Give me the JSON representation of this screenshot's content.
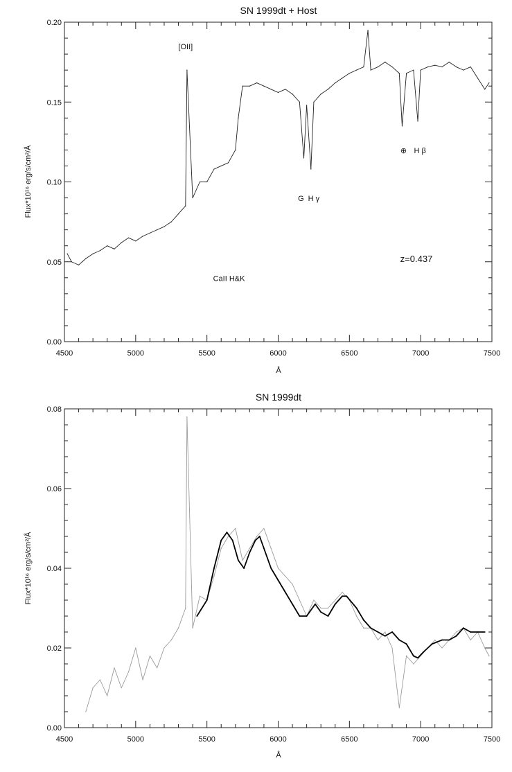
{
  "chart_data": [
    {
      "type": "line",
      "title": "SN 1999dt + Host",
      "xlabel": "Å",
      "ylabel": "Flux*10¹⁶ erg/s/cm²/Å",
      "xlim": [
        4500,
        7500
      ],
      "ylim": [
        0.0,
        0.2
      ],
      "x_ticks": [
        4500,
        5000,
        5500,
        6000,
        6500,
        7000,
        7500
      ],
      "y_ticks": [
        "0.00",
        "0.05",
        "0.10",
        "0.15",
        "0.20"
      ],
      "y_tick_values": [
        0.0,
        0.05,
        0.1,
        0.15,
        0.2
      ],
      "series": [
        {
          "name": "spectrum",
          "color": "#222222",
          "x": [
            4520,
            4550,
            4600,
            4650,
            4700,
            4750,
            4800,
            4850,
            4900,
            4950,
            5000,
            5050,
            5100,
            5150,
            5200,
            5250,
            5300,
            5350,
            5360,
            5400,
            5450,
            5500,
            5550,
            5600,
            5650,
            5700,
            5720,
            5750,
            5800,
            5850,
            5900,
            5950,
            6000,
            6050,
            6100,
            6150,
            6180,
            6200,
            6230,
            6250,
            6300,
            6350,
            6400,
            6450,
            6500,
            6550,
            6600,
            6630,
            6650,
            6700,
            6750,
            6800,
            6850,
            6870,
            6900,
            6950,
            6980,
            7000,
            7050,
            7100,
            7150,
            7200,
            7250,
            7300,
            7350,
            7400,
            7450,
            7480
          ],
          "values": [
            0.055,
            0.05,
            0.048,
            0.052,
            0.055,
            0.057,
            0.06,
            0.058,
            0.062,
            0.065,
            0.063,
            0.066,
            0.068,
            0.07,
            0.072,
            0.075,
            0.08,
            0.085,
            0.17,
            0.09,
            0.1,
            0.1,
            0.108,
            0.11,
            0.112,
            0.12,
            0.14,
            0.16,
            0.16,
            0.162,
            0.16,
            0.158,
            0.156,
            0.158,
            0.155,
            0.15,
            0.115,
            0.148,
            0.108,
            0.15,
            0.155,
            0.158,
            0.162,
            0.165,
            0.168,
            0.17,
            0.172,
            0.195,
            0.17,
            0.172,
            0.175,
            0.172,
            0.168,
            0.135,
            0.168,
            0.17,
            0.138,
            0.17,
            0.172,
            0.173,
            0.172,
            0.175,
            0.172,
            0.17,
            0.172,
            0.165,
            0.158,
            0.162
          ]
        }
      ],
      "annotations": [
        {
          "text": "[OII]",
          "x": 5350,
          "y": 0.183,
          "size": "small"
        },
        {
          "text": "CaII H&K",
          "x": 5655,
          "y": 0.038,
          "size": "small"
        },
        {
          "text": "G",
          "x": 6160,
          "y": 0.088,
          "size": "small"
        },
        {
          "text": "H γ",
          "x": 6250,
          "y": 0.088,
          "size": "small"
        },
        {
          "text": "⊕",
          "x": 6880,
          "y": 0.118,
          "size": "small"
        },
        {
          "text": "H β",
          "x": 6995,
          "y": 0.118,
          "size": "small"
        },
        {
          "text": "z=0.437",
          "x": 6970,
          "y": 0.05,
          "size": "big"
        }
      ]
    },
    {
      "type": "line",
      "title": "SN 1999dt",
      "xlabel": "Å",
      "ylabel": "Flux*10¹⁶ erg/s/cm²/Å",
      "xlim": [
        4500,
        7500
      ],
      "ylim": [
        0.0,
        0.08
      ],
      "x_ticks": [
        4500,
        5000,
        5500,
        6000,
        6500,
        7000,
        7500
      ],
      "y_ticks": [
        "0.00",
        "0.02",
        "0.04",
        "0.06",
        "0.08"
      ],
      "y_tick_values": [
        0.0,
        0.02,
        0.04,
        0.06,
        0.08
      ],
      "series": [
        {
          "name": "observed spectrum",
          "color": "#9a9a9a",
          "x": [
            4650,
            4700,
            4750,
            4800,
            4850,
            4900,
            4950,
            5000,
            5050,
            5100,
            5150,
            5200,
            5250,
            5300,
            5350,
            5360,
            5400,
            5450,
            5500,
            5550,
            5600,
            5650,
            5700,
            5750,
            5800,
            5850,
            5900,
            5950,
            6000,
            6050,
            6100,
            6150,
            6200,
            6250,
            6300,
            6350,
            6400,
            6450,
            6500,
            6550,
            6600,
            6650,
            6700,
            6750,
            6800,
            6850,
            6900,
            6950,
            7000,
            7050,
            7100,
            7150,
            7200,
            7250,
            7300,
            7350,
            7400,
            7450,
            7480
          ],
          "values": [
            0.004,
            0.01,
            0.012,
            0.008,
            0.015,
            0.01,
            0.014,
            0.02,
            0.012,
            0.018,
            0.015,
            0.02,
            0.022,
            0.025,
            0.03,
            0.078,
            0.025,
            0.033,
            0.032,
            0.038,
            0.045,
            0.048,
            0.05,
            0.042,
            0.045,
            0.048,
            0.05,
            0.045,
            0.04,
            0.038,
            0.036,
            0.032,
            0.028,
            0.032,
            0.03,
            0.03,
            0.032,
            0.034,
            0.032,
            0.028,
            0.025,
            0.025,
            0.022,
            0.024,
            0.02,
            0.005,
            0.018,
            0.016,
            0.018,
            0.02,
            0.022,
            0.02,
            0.022,
            0.024,
            0.025,
            0.022,
            0.024,
            0.02,
            0.018
          ]
        },
        {
          "name": "smoothed spectrum",
          "color": "#000000",
          "x": [
            5430,
            5500,
            5550,
            5600,
            5640,
            5680,
            5720,
            5760,
            5800,
            5840,
            5870,
            5900,
            5950,
            6000,
            6050,
            6100,
            6150,
            6200,
            6260,
            6300,
            6350,
            6400,
            6450,
            6480,
            6550,
            6600,
            6650,
            6700,
            6750,
            6800,
            6850,
            6900,
            6950,
            6980,
            7020,
            7080,
            7150,
            7200,
            7250,
            7300,
            7350,
            7400,
            7450
          ],
          "values": [
            0.028,
            0.032,
            0.04,
            0.047,
            0.049,
            0.047,
            0.042,
            0.04,
            0.044,
            0.047,
            0.048,
            0.045,
            0.04,
            0.037,
            0.034,
            0.031,
            0.028,
            0.028,
            0.031,
            0.029,
            0.028,
            0.031,
            0.033,
            0.033,
            0.03,
            0.027,
            0.025,
            0.024,
            0.023,
            0.024,
            0.022,
            0.021,
            0.018,
            0.0175,
            0.019,
            0.021,
            0.022,
            0.022,
            0.023,
            0.025,
            0.024,
            0.024,
            0.024
          ]
        }
      ],
      "annotations": []
    }
  ]
}
